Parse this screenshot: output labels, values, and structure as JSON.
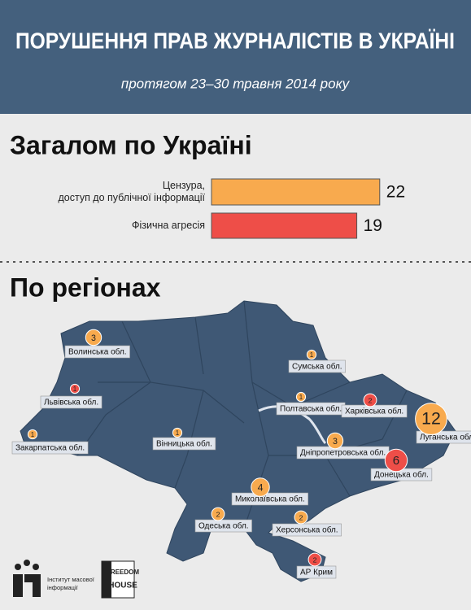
{
  "header": {
    "title": "ПОРУШЕННЯ ПРАВ ЖУРНАЛІСТІВ В УКРАЇНІ",
    "subtitle": "протягом 23–30 травня 2014 року"
  },
  "chart_data": {
    "type": "bar",
    "title": "Загалом по Україні",
    "orientation": "horizontal",
    "categories": [
      [
        "Цензура,",
        "доступ до публічної інформації"
      ],
      [
        "Фізична агресія"
      ]
    ],
    "values": [
      22,
      19
    ],
    "colors": [
      "#f8aa4e",
      "#ee4e48"
    ]
  },
  "map": {
    "title": "По регіонах",
    "regions": [
      {
        "name": "Волинська обл.",
        "value": 3,
        "color": "#f8aa4e"
      },
      {
        "name": "Львівська обл.",
        "value": 1,
        "color": "#ee4e48"
      },
      {
        "name": "Закарпатська обл.",
        "value": 1,
        "color": "#f8aa4e"
      },
      {
        "name": "Вінницька обл.",
        "value": 1,
        "color": "#f8aa4e"
      },
      {
        "name": "Сумська обл.",
        "value": 1,
        "color": "#f8aa4e"
      },
      {
        "name": "Полтавська обл.",
        "value": 1,
        "color": "#f8aa4e"
      },
      {
        "name": "Харківська обл.",
        "value": 2,
        "color": "#ee4e48"
      },
      {
        "name": "Луганська обл.",
        "value": 12,
        "color": "#f8aa4e"
      },
      {
        "name": "Дніпропетровська обл.",
        "value": 3,
        "color": "#f8aa4e"
      },
      {
        "name": "Донецька обл.",
        "value": 6,
        "color": "#ee4e48"
      },
      {
        "name": "Миколаївська обл.",
        "value": 4,
        "color": "#f8aa4e"
      },
      {
        "name": "Одеська обл.",
        "value": 2,
        "color": "#f8aa4e"
      },
      {
        "name": "Херсонська обл.",
        "value": 2,
        "color": "#f8aa4e"
      },
      {
        "name": "АР Крим",
        "value": 2,
        "color": "#ee4e48"
      }
    ]
  },
  "footer": {
    "imi": [
      "Інститут масової",
      "інформації"
    ],
    "fh": [
      "FREEDOM",
      "HOUSE"
    ]
  }
}
